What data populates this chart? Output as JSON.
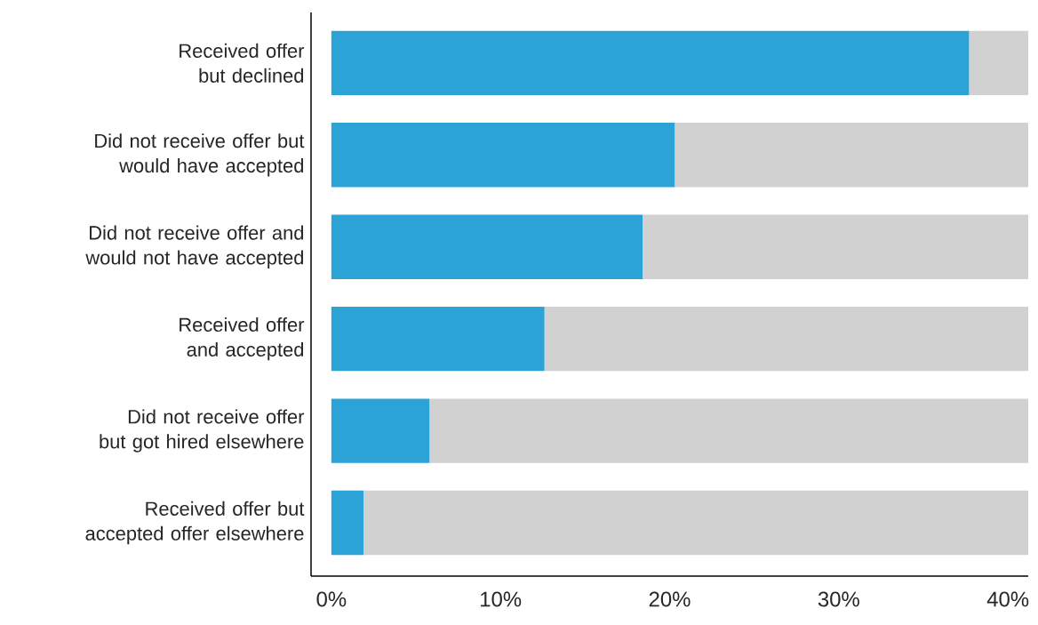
{
  "chart_data": {
    "type": "bar",
    "orientation": "horizontal",
    "stacked": true,
    "categories": [
      "Received offer but declined",
      "Did not receive offer but would have accepted",
      "Did not receive offer and would not have accepted",
      "Received offer and accepted",
      "Did not receive offer but got hired elsewhere",
      "Received offer but accepted offer elsewhere"
    ],
    "series": [
      {
        "color": "#2ba3d7",
        "values": [
          37.7,
          20.3,
          18.4,
          12.6,
          5.8,
          1.9
        ]
      },
      {
        "color": "#d1d1d1",
        "values": [
          3.5,
          20.9,
          22.8,
          28.6,
          35.4,
          39.3
        ]
      }
    ],
    "xlim": [
      -1.2,
      41.2
    ],
    "xticks": [
      {
        "value": 0,
        "label": "0%"
      },
      {
        "value": 10,
        "label": "10%"
      },
      {
        "value": 20,
        "label": "20%"
      },
      {
        "value": 30,
        "label": "30%"
      },
      {
        "value": 40,
        "label": "40%"
      }
    ],
    "grid": false
  }
}
